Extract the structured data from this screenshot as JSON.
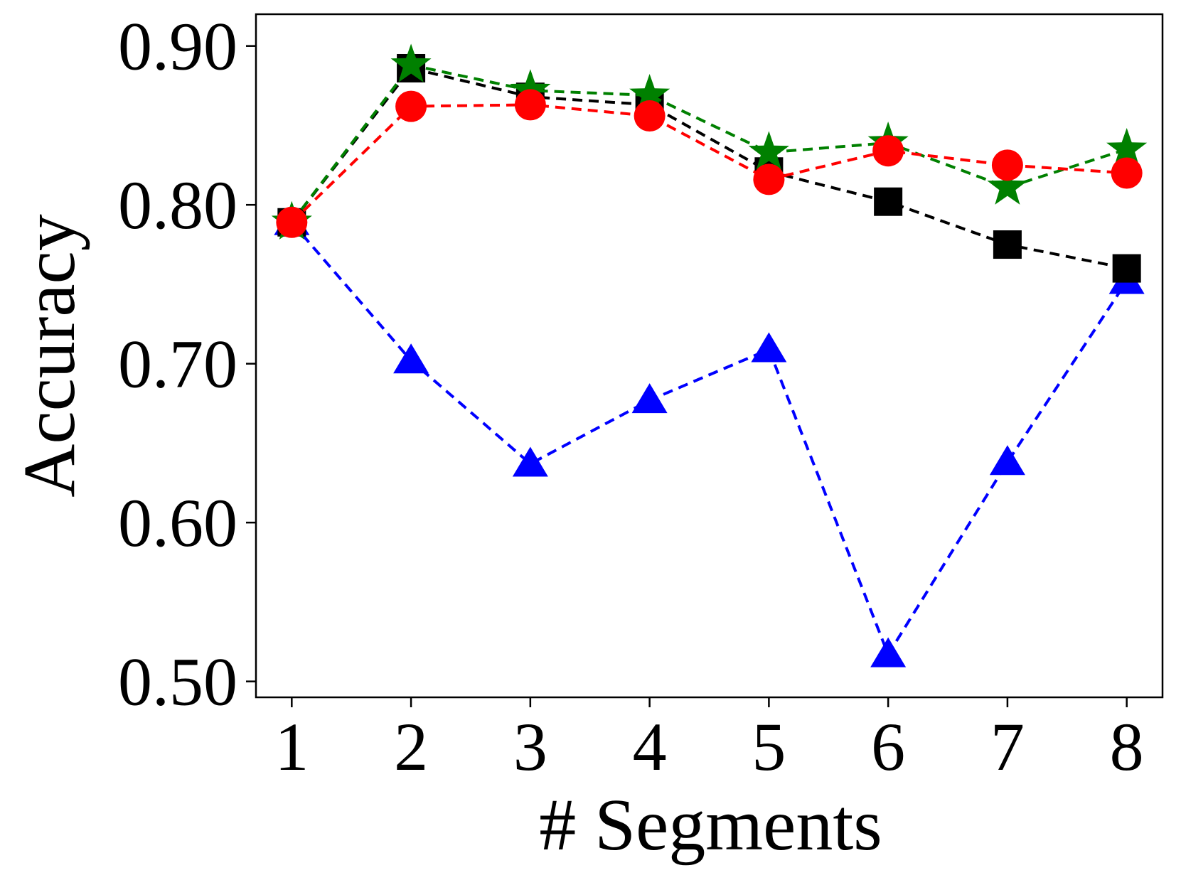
{
  "chart_data": {
    "type": "line",
    "title": "",
    "xlabel": "# Segments",
    "ylabel": "Accuracy",
    "x": [
      1,
      2,
      3,
      4,
      5,
      6,
      7,
      8
    ],
    "xlim": [
      0.7,
      8.3
    ],
    "ylim": [
      0.49,
      0.92
    ],
    "yticks": [
      0.5,
      0.6,
      0.7,
      0.8,
      0.9
    ],
    "ytick_labels": [
      "0.50",
      "0.60",
      "0.70",
      "0.80",
      "0.90"
    ],
    "xtick_labels": [
      "1",
      "2",
      "3",
      "4",
      "5",
      "6",
      "7",
      "8"
    ],
    "grid": false,
    "legend": "none",
    "series": [
      {
        "values": [
          0.789,
          0.702,
          0.637,
          0.677,
          0.709,
          0.517,
          0.638,
          0.752
        ],
        "color": "#0000ff",
        "marker": "triangle",
        "linestyle": "dashed"
      },
      {
        "values": [
          0.789,
          0.886,
          0.868,
          0.863,
          0.821,
          0.802,
          0.775,
          0.76
        ],
        "color": "#000000",
        "marker": "square",
        "linestyle": "dashed"
      },
      {
        "values": [
          0.789,
          0.888,
          0.872,
          0.869,
          0.833,
          0.839,
          0.811,
          0.835
        ],
        "color": "#008000",
        "marker": "star",
        "linestyle": "dashed"
      },
      {
        "values": [
          0.789,
          0.862,
          0.863,
          0.856,
          0.816,
          0.834,
          0.825,
          0.82
        ],
        "color": "#ff0000",
        "marker": "circle",
        "linestyle": "dashed"
      }
    ]
  }
}
